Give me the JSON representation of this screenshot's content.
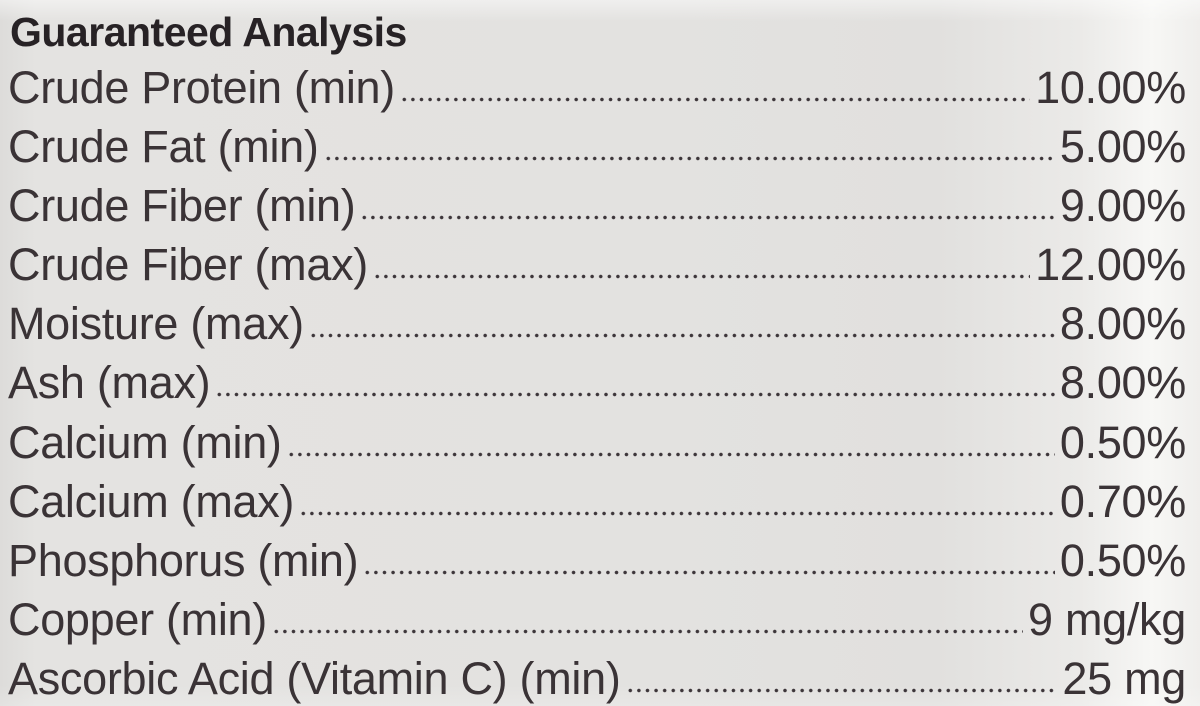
{
  "title": "Guaranteed Analysis",
  "rows": [
    {
      "label": "Crude Protein (min)",
      "value": "10.00%"
    },
    {
      "label": "Crude Fat (min)",
      "value": "5.00%"
    },
    {
      "label": "Crude Fiber (min)",
      "value": "9.00%"
    },
    {
      "label": "Crude Fiber (max)",
      "value": "12.00%"
    },
    {
      "label": "Moisture (max)",
      "value": "8.00%"
    },
    {
      "label": "Ash (max)",
      "value": "8.00%"
    },
    {
      "label": "Calcium (min)",
      "value": "0.50%"
    },
    {
      "label": "Calcium (max)",
      "value": "0.70%"
    },
    {
      "label": "Phosphorus (min)",
      "value": "0.50%"
    },
    {
      "label": "Copper (min)",
      "value": "9 mg/kg"
    },
    {
      "label": "Ascorbic Acid (Vitamin C) (min)",
      "value": "25 mg"
    }
  ],
  "colors": {
    "background": "#e3e2e0",
    "edge_highlight": "#f7f7f5",
    "text": "#3a3336",
    "title_text": "#272225"
  }
}
